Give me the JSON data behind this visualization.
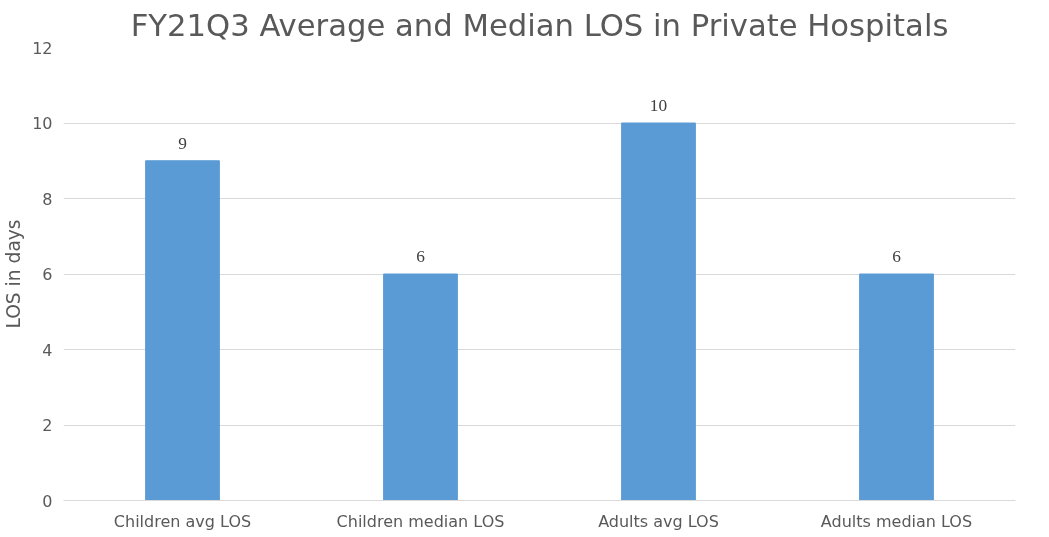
{
  "chart_data": {
    "type": "bar",
    "title": "FY21Q3 Average and Median LOS in Private Hospitals",
    "ylabel": "LOS in days",
    "categories": [
      "Children avg LOS",
      "Children median LOS",
      "Adults avg LOS",
      "Adults median LOS"
    ],
    "values": [
      9,
      6,
      10,
      6
    ],
    "color": "#5b9bd5",
    "ylim": [
      0,
      12
    ],
    "yticks": [
      0,
      2,
      4,
      6,
      8,
      10,
      12
    ],
    "grid": "y",
    "data_labels": true
  }
}
